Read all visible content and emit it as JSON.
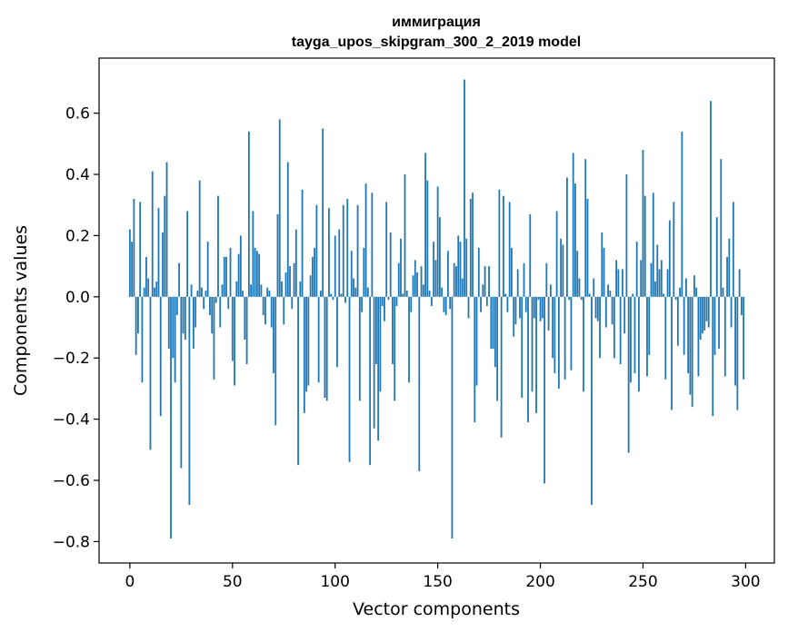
{
  "chart_data": {
    "type": "bar",
    "title": "иммиграция",
    "subtitle": "tayga_upos_skipgram_300_2_2019 model",
    "xlabel": "Vector components",
    "ylabel": "Components values",
    "xlim": [
      -15,
      314
    ],
    "ylim": [
      -0.87,
      0.78
    ],
    "xticks": [
      0,
      50,
      100,
      150,
      200,
      250,
      300
    ],
    "xtick_labels": [
      "0",
      "50",
      "100",
      "150",
      "200",
      "250",
      "300"
    ],
    "yticks": [
      -0.8,
      -0.6,
      -0.4,
      -0.2,
      0.0,
      0.2,
      0.4,
      0.6
    ],
    "ytick_labels": [
      "−0.8",
      "−0.6",
      "−0.4",
      "−0.2",
      "0.0",
      "0.2",
      "0.4",
      "0.6"
    ],
    "grid": false,
    "bar_color": "#1f77b4",
    "x": [
      0,
      1,
      2,
      3,
      4,
      5,
      6,
      7,
      8,
      9,
      10,
      11,
      12,
      13,
      14,
      15,
      16,
      17,
      18,
      19,
      20,
      21,
      22,
      23,
      24,
      25,
      26,
      27,
      28,
      29,
      30,
      31,
      32,
      33,
      34,
      35,
      36,
      37,
      38,
      39,
      40,
      41,
      42,
      43,
      44,
      45,
      46,
      47,
      48,
      49,
      50,
      51,
      52,
      53,
      54,
      55,
      56,
      57,
      58,
      59,
      60,
      61,
      62,
      63,
      64,
      65,
      66,
      67,
      68,
      69,
      70,
      71,
      72,
      73,
      74,
      75,
      76,
      77,
      78,
      79,
      80,
      81,
      82,
      83,
      84,
      85,
      86,
      87,
      88,
      89,
      90,
      91,
      92,
      93,
      94,
      95,
      96,
      97,
      98,
      99,
      100,
      101,
      102,
      103,
      104,
      105,
      106,
      107,
      108,
      109,
      110,
      111,
      112,
      113,
      114,
      115,
      116,
      117,
      118,
      119,
      120,
      121,
      122,
      123,
      124,
      125,
      126,
      127,
      128,
      129,
      130,
      131,
      132,
      133,
      134,
      135,
      136,
      137,
      138,
      139,
      140,
      141,
      142,
      143,
      144,
      145,
      146,
      147,
      148,
      149,
      150,
      151,
      152,
      153,
      154,
      155,
      156,
      157,
      158,
      159,
      160,
      161,
      162,
      163,
      164,
      165,
      166,
      167,
      168,
      169,
      170,
      171,
      172,
      173,
      174,
      175,
      176,
      177,
      178,
      179,
      180,
      181,
      182,
      183,
      184,
      185,
      186,
      187,
      188,
      189,
      190,
      191,
      192,
      193,
      194,
      195,
      196,
      197,
      198,
      199,
      200,
      201,
      202,
      203,
      204,
      205,
      206,
      207,
      208,
      209,
      210,
      211,
      212,
      213,
      214,
      215,
      216,
      217,
      218,
      219,
      220,
      221,
      222,
      223,
      224,
      225,
      226,
      227,
      228,
      229,
      230,
      231,
      232,
      233,
      234,
      235,
      236,
      237,
      238,
      239,
      240,
      241,
      242,
      243,
      244,
      245,
      246,
      247,
      248,
      249,
      250,
      251,
      252,
      253,
      254,
      255,
      256,
      257,
      258,
      259,
      260,
      261,
      262,
      263,
      264,
      265,
      266,
      267,
      268,
      269,
      270,
      271,
      272,
      273,
      274,
      275,
      276,
      277,
      278,
      279,
      280,
      281,
      282,
      283,
      284,
      285,
      286,
      287,
      288,
      289,
      290,
      291,
      292,
      293,
      294,
      295,
      296,
      297,
      298,
      299
    ],
    "values": [
      0.22,
      0.18,
      0.32,
      -0.19,
      -0.12,
      0.31,
      -0.28,
      0.03,
      0.13,
      0.06,
      -0.5,
      0.41,
      0.03,
      0.05,
      0.29,
      -0.39,
      0.21,
      0.33,
      0.44,
      -0.17,
      -0.79,
      -0.2,
      -0.28,
      -0.06,
      0.11,
      -0.56,
      -0.12,
      -0.14,
      0.28,
      -0.68,
      0.04,
      -0.17,
      -0.1,
      0.02,
      0.38,
      0.03,
      -0.04,
      0.02,
      0.18,
      -0.06,
      -0.12,
      -0.27,
      -0.02,
      0.33,
      -0.1,
      0.04,
      0.13,
      0.13,
      -0.04,
      0.16,
      -0.21,
      -0.29,
      0.05,
      0.14,
      0.2,
      0.02,
      -0.14,
      -0.22,
      0.54,
      0.04,
      0.28,
      0.16,
      0.15,
      0.14,
      0.04,
      -0.06,
      -0.09,
      0.03,
      0.02,
      -0.1,
      -0.25,
      -0.42,
      0.27,
      0.58,
      0.05,
      -0.09,
      0.08,
      0.44,
      0.1,
      -0.04,
      0.11,
      0.22,
      -0.55,
      0.05,
      0.35,
      -0.38,
      -0.31,
      -0.29,
      0.07,
      0.13,
      0.16,
      0.3,
      -0.28,
      0.02,
      0.55,
      -0.33,
      -0.34,
      0.29,
      0.01,
      -0.01,
      0.2,
      -0.23,
      0.22,
      0.01,
      0.3,
      -0.02,
      0.32,
      -0.54,
      0.15,
      0.06,
      0.03,
      0.3,
      -0.34,
      -0.05,
      0.16,
      0.37,
      0.03,
      -0.55,
      0.34,
      -0.43,
      -0.22,
      -0.47,
      -0.31,
      -0.03,
      -0.08,
      0.31,
      -0.01,
      0.21,
      -0.22,
      -0.34,
      -0.03,
      0.11,
      0.19,
      0.01,
      0.4,
      0.02,
      -0.28,
      -0.05,
      0.07,
      0.12,
      0.08,
      -0.57,
      0.1,
      0.04,
      0.47,
      0.38,
      0.02,
      -0.03,
      0.18,
      0.12,
      0.36,
      0.26,
      0.03,
      -0.05,
      -0.06,
      0.15,
      -0.04,
      -0.79,
      0.11,
      0.1,
      0.2,
      0.18,
      0.06,
      0.71,
      0.19,
      -0.07,
      0.32,
      0.34,
      -0.41,
      -0.29,
      0.16,
      -0.05,
      0.04,
      0.1,
      -0.03,
      0.1,
      -0.17,
      -0.17,
      -0.23,
      -0.34,
      0.35,
      -0.46,
      0.33,
      0.01,
      -0.05,
      0.31,
      0.16,
      -0.13,
      -0.09,
      0.09,
      -0.07,
      -0.33,
      0.11,
      -0.05,
      -0.41,
      0.27,
      -0.31,
      -0.07,
      -0.38,
      -0.01,
      -0.08,
      -0.07,
      -0.61,
      0.11,
      -0.11,
      0.04,
      -0.2,
      -0.25,
      0.28,
      -0.3,
      0.19,
      0.17,
      -0.27,
      0.39,
      -0.01,
      -0.24,
      0.47,
      0.37,
      0.15,
      0.06,
      -0.01,
      -0.31,
      0.45,
      0.32,
      0.01,
      -0.68,
      0.06,
      -0.07,
      -0.08,
      -0.2,
      0.21,
      0.16,
      -0.1,
      0.04,
      0.02,
      -0.09,
      -0.2,
      0.12,
      0.09,
      -0.22,
      0.09,
      -0.12,
      0.4,
      -0.51,
      -0.28,
      0.01,
      -0.25,
      0.18,
      -0.31,
      0.12,
      0.48,
      0.33,
      -0.26,
      -0.19,
      0.11,
      0.34,
      0.05,
      0.17,
      0.09,
      0.12,
      0.01,
      -0.27,
      0.09,
      0.25,
      -0.37,
      0.31,
      -0.01,
      -0.16,
      0.03,
      0.54,
      -0.19,
      0.06,
      -0.25,
      -0.32,
      -0.36,
      0.07,
      0.03,
      -0.26,
      -0.14,
      -0.12,
      -0.11,
      -0.08,
      -0.1,
      0.64,
      -0.39,
      -0.19,
      0.26,
      -0.17,
      0.45,
      0.03,
      -0.26,
      0.13,
      0.19,
      -0.1,
      0.31,
      -0.29,
      -0.37,
      0.09,
      -0.06,
      -0.27
    ]
  }
}
